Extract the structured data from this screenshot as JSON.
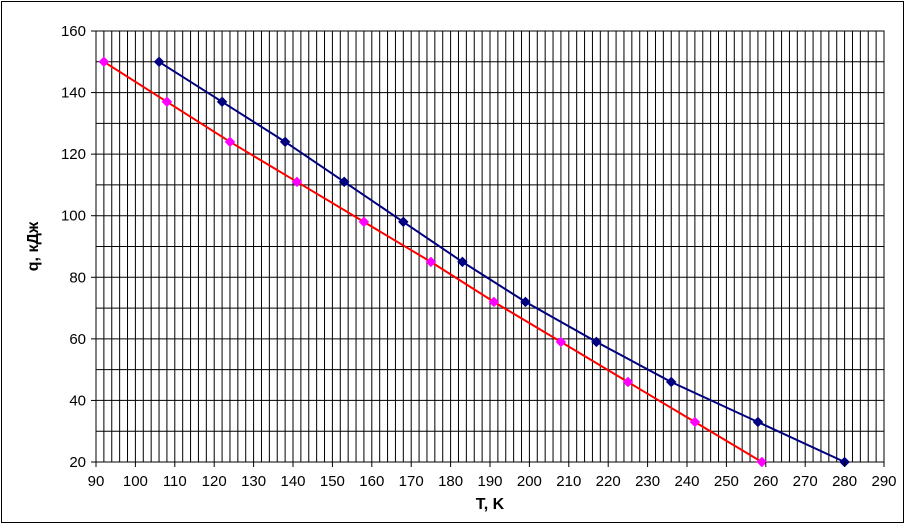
{
  "chart_data": {
    "type": "line",
    "xlabel": "T, K",
    "ylabel": "q, кДж",
    "xlim": [
      90,
      290
    ],
    "ylim": [
      20,
      160
    ],
    "x_major_ticks": [
      90,
      100,
      110,
      120,
      130,
      140,
      150,
      160,
      170,
      180,
      190,
      200,
      210,
      220,
      230,
      240,
      250,
      260,
      270,
      280,
      290
    ],
    "y_major_ticks": [
      20,
      40,
      60,
      80,
      100,
      120,
      140,
      160
    ],
    "x_minor_step": 2,
    "y_minor_step": 10,
    "grid": true,
    "series": [
      {
        "color": "#000080",
        "marker": "diamond",
        "points": [
          [
            106,
            150
          ],
          [
            122,
            137
          ],
          [
            138,
            124
          ],
          [
            153,
            111
          ],
          [
            168,
            98
          ],
          [
            183,
            85
          ],
          [
            199,
            72
          ],
          [
            217,
            59
          ],
          [
            236,
            46
          ],
          [
            258,
            33
          ],
          [
            280,
            20
          ]
        ]
      },
      {
        "color": "#ff0000",
        "marker_color": "#ff00ff",
        "marker": "diamond",
        "points": [
          [
            92,
            150
          ],
          [
            108,
            137
          ],
          [
            124,
            124
          ],
          [
            141,
            111
          ],
          [
            158,
            98
          ],
          [
            175,
            85
          ],
          [
            191,
            72
          ],
          [
            208,
            59
          ],
          [
            225,
            46
          ],
          [
            242,
            33
          ],
          [
            259,
            20
          ]
        ]
      }
    ]
  }
}
